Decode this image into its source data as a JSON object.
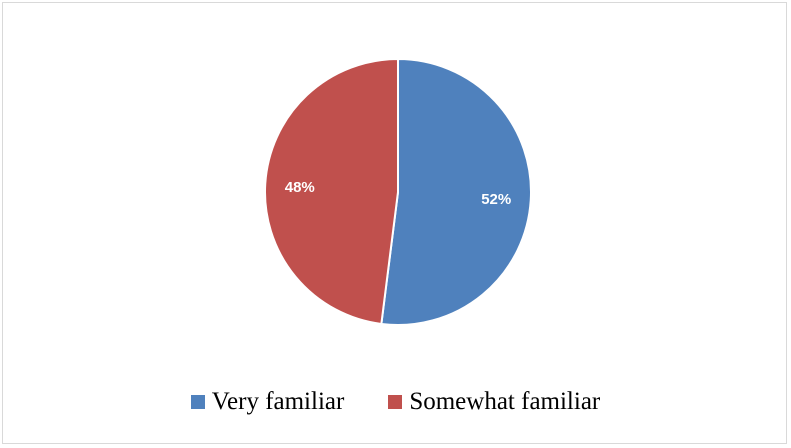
{
  "chart_data": {
    "type": "pie",
    "title": "",
    "categories": [
      "Very familiar",
      "Somewhat familiar"
    ],
    "values": [
      52,
      48
    ],
    "labels": [
      "52%",
      "48%"
    ],
    "colors": [
      "#4f81bd",
      "#c0504d"
    ],
    "legend_position": "bottom",
    "start_angle_deg": 0,
    "direction": "clockwise"
  }
}
